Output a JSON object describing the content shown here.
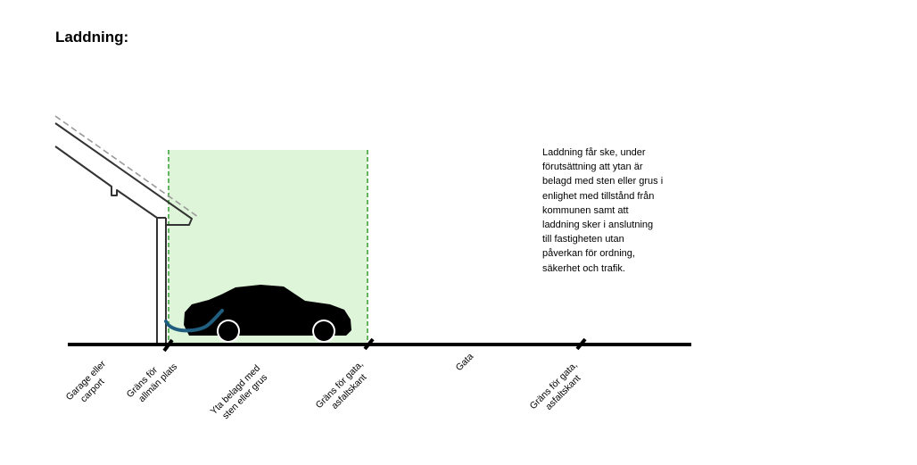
{
  "title": "Laddning:",
  "description": [
    "Laddning får ske, under",
    "förutsättning att ytan är",
    "belagd med sten eller grus i",
    "enlighet med tillstånd från",
    "kommunen samt att",
    "laddning sker i anslutning",
    "till fastigheten utan",
    "påverkan för ordning,",
    "säkerhet och trafik."
  ],
  "labels": {
    "garage": [
      "Garage eller",
      "carport"
    ],
    "boundary_public": [
      "Gräns för",
      "allmän plats"
    ],
    "surface": [
      "Yta belagd med",
      "sten eller grus"
    ],
    "boundary_street_1": [
      "Gräns för gata,",
      "asfaltskant"
    ],
    "street": [
      "Gata"
    ],
    "boundary_street_2": [
      "Gräns för gata,",
      "asfaltskant"
    ]
  },
  "colors": {
    "zone_fill": "#dff5d9",
    "zone_border": "#3fa33a",
    "cable": "#1f5e7e",
    "ground": "#000000",
    "roof_dash": "#9a9a9a"
  },
  "icons": {
    "car": "car-icon",
    "cable": "charging-cable-icon",
    "carport": "carport-icon"
  }
}
